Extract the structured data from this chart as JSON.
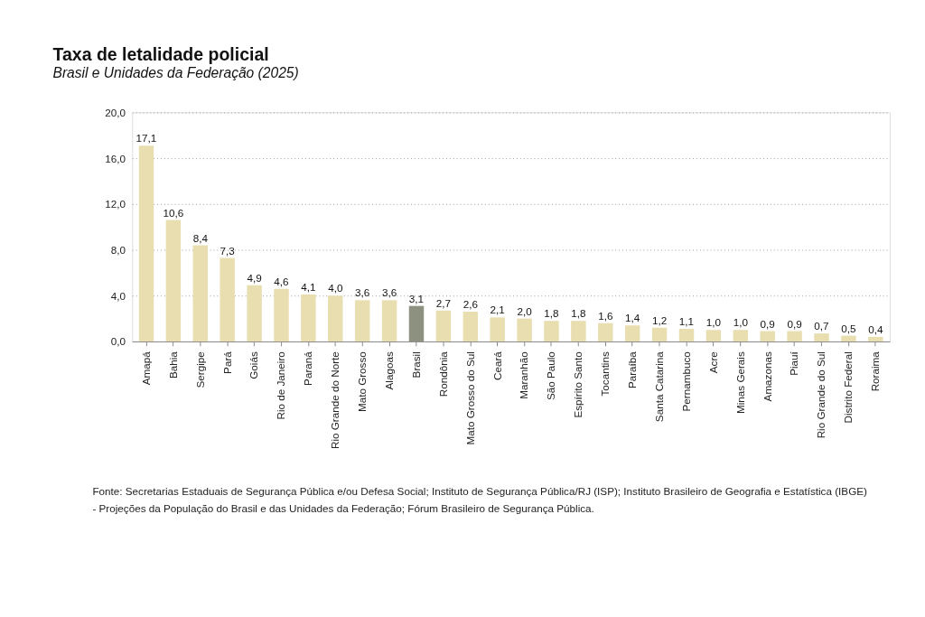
{
  "chart_data": {
    "type": "bar",
    "title": "Taxa de letalidade policial",
    "subtitle": "Brasil e Unidades da Federação (2025)",
    "categories": [
      "Amapá",
      "Bahia",
      "Sergipe",
      "Pará",
      "Goiás",
      "Rio de Janeiro",
      "Paraná",
      "Rio Grande do Norte",
      "Mato Grosso",
      "Alagoas",
      "Brasil",
      "Rondônia",
      "Mato Grosso do Sul",
      "Ceará",
      "Maranhão",
      "São Paulo",
      "Espírito Santo",
      "Tocantins",
      "Paraíba",
      "Santa Catarina",
      "Pernambuco",
      "Acre",
      "Minas Gerais",
      "Amazonas",
      "Piauí",
      "Rio Grande do Sul",
      "Distrito Federal",
      "Roraima"
    ],
    "values": [
      17.1,
      10.6,
      8.4,
      7.3,
      4.9,
      4.6,
      4.1,
      4.0,
      3.6,
      3.6,
      3.1,
      2.7,
      2.6,
      2.1,
      2.0,
      1.8,
      1.8,
      1.6,
      1.4,
      1.2,
      1.1,
      1.0,
      1.0,
      0.9,
      0.9,
      0.7,
      0.5,
      0.4
    ],
    "value_labels": [
      "17,1",
      "10,6",
      "8,4",
      "7,3",
      "4,9",
      "4,6",
      "4,1",
      "4,0",
      "3,6",
      "3,6",
      "3,1",
      "2,7",
      "2,6",
      "2,1",
      "2,0",
      "1,8",
      "1,8",
      "1,6",
      "1,4",
      "1,2",
      "1,1",
      "1,0",
      "1,0",
      "0,9",
      "0,9",
      "0,7",
      "0,5",
      "0,4"
    ],
    "colors": [
      "#e8deb0",
      "#e8deb0",
      "#e8deb0",
      "#e8deb0",
      "#e8deb0",
      "#e8deb0",
      "#e8deb0",
      "#e8deb0",
      "#e8deb0",
      "#e8deb0",
      "#8c9180",
      "#e8deb0",
      "#e8deb0",
      "#e8deb0",
      "#e8deb0",
      "#e8deb0",
      "#e8deb0",
      "#e8deb0",
      "#e8deb0",
      "#e8deb0",
      "#e8deb0",
      "#e8deb0",
      "#e8deb0",
      "#e8deb0",
      "#e8deb0",
      "#e8deb0",
      "#e8deb0",
      "#e8deb0"
    ],
    "ylim": [
      0,
      20
    ],
    "yticks": [
      {
        "value": 0,
        "label": "0,0"
      },
      {
        "value": 4,
        "label": "4,0"
      },
      {
        "value": 8,
        "label": "8,0"
      },
      {
        "value": 12,
        "label": "12,0"
      },
      {
        "value": 16,
        "label": "16,0"
      },
      {
        "value": 20,
        "label": "20,0"
      }
    ],
    "grid": "y",
    "annotations": [
      "Fonte: Secretarias Estaduais de Segurança Pública e/ou Defesa Social; Instituto de Segurança Pública/RJ (ISP); Instituto Brasileiro de Geografia e Estatística (IBGE) - Projeções da População do Brasil e das Unidades da Federação; Fórum Brasileiro de Segurança Pública."
    ]
  }
}
